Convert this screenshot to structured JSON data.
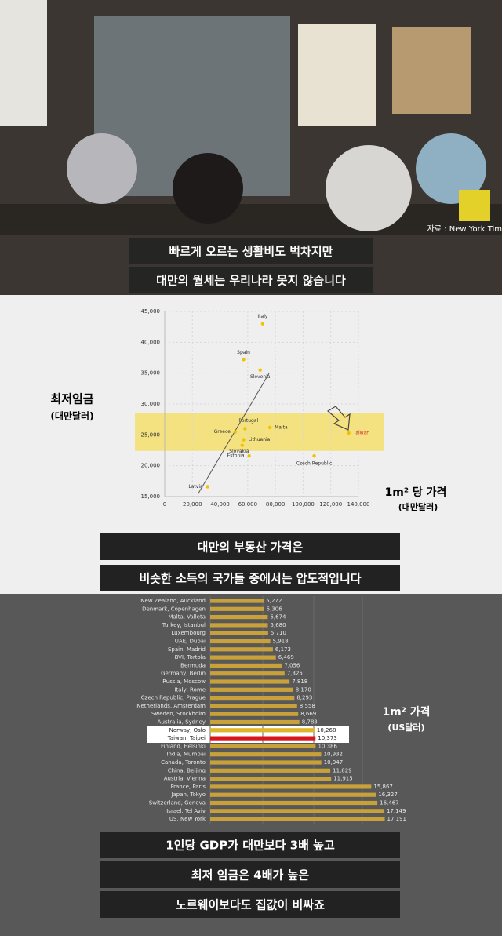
{
  "source": "자료 : New York Times",
  "captions": {
    "top": [
      "빠르게 오르는 생활비도 벅차지만",
      "대만의 월세는 우리나라 못지 않습니다"
    ],
    "middle": [
      "대만의 부동산 가격은",
      "비슷한 소득의 국가들 중에서는 압도적입니다"
    ],
    "bottom": [
      "1인당 GDP가 대만보다 3배 높고",
      "최저 임금은 4배가 높은",
      "노르웨이보다도 집값이 비싸죠"
    ]
  },
  "chart_data": [
    {
      "type": "scatter",
      "ylabel": "최저임금",
      "ylabel_unit": "(대만달러)",
      "xlabel": "1m² 당 가격",
      "xlabel_unit": "(대만달러)",
      "labels": [
        "Italy",
        "Spain",
        "Slovenia",
        "Portugal",
        "Malta",
        "Greece",
        "Lithuania",
        "Slovakia",
        "Estonia",
        "Czech Republic",
        "Taiwan",
        "Latvia"
      ],
      "x": [
        70800,
        57000,
        69000,
        58000,
        76000,
        51000,
        57000,
        56000,
        61000,
        108000,
        133000,
        31000
      ],
      "y": [
        43000,
        37200,
        35500,
        26000,
        26200,
        25500,
        24200,
        23300,
        21600,
        21600,
        25300,
        16600
      ],
      "color": "#f2c200",
      "trend_line": {
        "x": [
          24000,
          75500
        ],
        "y": [
          15400,
          35000
        ]
      },
      "highlight_band": [
        22400,
        28600
      ],
      "highlight_color": "#f5dc5a",
      "xlim": [
        0,
        140000
      ],
      "ylim": [
        15000,
        45000
      ],
      "xticks": [
        0,
        {
          "value": 20000,
          "label": "20,000"
        },
        {
          "value": 40000,
          "label": "40,000"
        },
        {
          "value": 60000,
          "label": "60,000"
        },
        {
          "value": 80000,
          "label": "80,000"
        },
        {
          "value": 100000,
          "label": "100,000"
        },
        {
          "value": 120000,
          "label": "120,000"
        },
        {
          "value": 140000,
          "label": "140,000"
        }
      ],
      "yticks": [
        {
          "value": 15000,
          "label": "15,000"
        },
        {
          "value": 20000,
          "label": "20,000"
        },
        {
          "value": 25000,
          "label": "25,000"
        },
        {
          "value": 30000,
          "label": "30,000"
        },
        {
          "value": 35000,
          "label": "35,000"
        },
        {
          "value": 40000,
          "label": "40,000"
        },
        {
          "value": 45000,
          "label": "45,000"
        }
      ],
      "grid": true
    },
    {
      "type": "bar",
      "orientation": "horizontal",
      "xlabel": "1m² 가격",
      "xlabel_unit": "(US달러)",
      "categories": [
        "New Zealand, Auckland",
        "Denmark, Copenhagen",
        "Malta, Valleta",
        "Turkey, Istanbul",
        "Luxembourg",
        "UAE, Dubai",
        "Spain, Madrid",
        "BVI, Tortola",
        "Bermuda",
        "Germany, Berlin",
        "Russia, Moscow",
        "Italy, Rome",
        "Czech Republic, Prague",
        "Netherlands, Amsterdam",
        "Sweden, Stockholm",
        "Australia, Sydney",
        "Norway, Oslo",
        "Taiwan, Taipei",
        "Finland, Helsinki",
        "India, Mumbai",
        "Canada, Toronto",
        "China, Beijing",
        "Austria, Vienna",
        "France, Paris",
        "Japan, Tokyo",
        "Switzerland, Geneva",
        "Israel, Tel Aviv",
        "US, New York"
      ],
      "values": [
        5272,
        5306,
        5674,
        5680,
        5710,
        5918,
        6173,
        6469,
        7056,
        7325,
        7818,
        8170,
        8293,
        8558,
        8669,
        8783,
        10268,
        10373,
        10386,
        10932,
        10947,
        11829,
        11915,
        15867,
        16327,
        16467,
        17149,
        17191
      ],
      "value_labels": [
        "5,272",
        "5,306",
        "5,674",
        "5,680",
        "5,710",
        "5,918",
        "6,173",
        "6,469",
        "7,056",
        "7,325",
        "7,818",
        "8,170",
        "8,293",
        "8,558",
        "8,669",
        "8,783",
        "10,268",
        "10,373",
        "10,386",
        "10,932",
        "10,947",
        "11,829",
        "11,915",
        "15,867",
        "16,327",
        "16,467",
        "17,149",
        "17,191"
      ],
      "colors": [
        "#c9a13b",
        "#c9a13b",
        "#c9a13b",
        "#c9a13b",
        "#c9a13b",
        "#c9a13b",
        "#c9a13b",
        "#c9a13b",
        "#c9a13b",
        "#c9a13b",
        "#c9a13b",
        "#c9a13b",
        "#c9a13b",
        "#c9a13b",
        "#c9a13b",
        "#c9a13b",
        "#e0b52a",
        "#d8141c",
        "#c9a13b",
        "#c9a13b",
        "#c9a13b",
        "#c9a13b",
        "#c9a13b",
        "#c9a13b",
        "#c9a13b",
        "#c9a13b",
        "#c9a13b",
        "#c9a13b"
      ],
      "xlim": [
        0,
        18000
      ]
    }
  ]
}
